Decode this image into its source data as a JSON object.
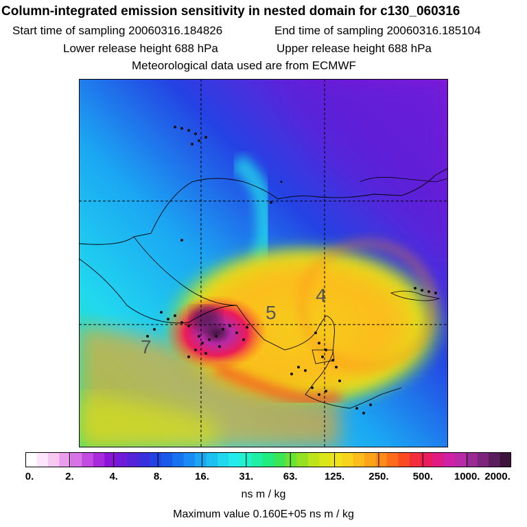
{
  "header": {
    "title": "Column-integrated emission sensitivity in nested domain for c130_060316",
    "start_sampling": "Start time of sampling 20060316.184826",
    "end_sampling": "End time of sampling 20060316.185104",
    "lower_release": "Lower release height  688 hPa",
    "upper_release": "Upper release height  688 hPa",
    "met_data": "Meteorological data used are from ECMWF"
  },
  "map": {
    "day_labels": [
      "4",
      "5",
      "7"
    ]
  },
  "colorbar": {
    "tick_labels": [
      "0.",
      "2.",
      "4.",
      "8.",
      "16.",
      "31.",
      "63.",
      "125.",
      "250.",
      "500.",
      "1000.",
      "2000."
    ],
    "colors": [
      "#ffffff",
      "#fde6fb",
      "#f7c8f2",
      "#eb9cec",
      "#d873e6",
      "#c24ce0",
      "#a82adc",
      "#8c16d8",
      "#6f1bd7",
      "#5523d8",
      "#3a2fdd",
      "#2442e3",
      "#1a58ea",
      "#1672ef",
      "#188cf2",
      "#1ba6f3",
      "#1ec0f2",
      "#21d8ef",
      "#24ecea",
      "#22f2cc",
      "#1ff0a6",
      "#22ec7e",
      "#3be556",
      "#68e234",
      "#94e121",
      "#bde31a",
      "#dbe619",
      "#efe31b",
      "#f8d31c",
      "#fcbd1c",
      "#fda41b",
      "#fd8a1a",
      "#fc6c1a",
      "#fa4a22",
      "#f42d3a",
      "#eb1c5a",
      "#de1c82",
      "#cf22a4",
      "#b82aa6",
      "#9c2a94",
      "#7b257c",
      "#5a1d5d",
      "#3c153c"
    ],
    "units": "ns m / kg"
  },
  "footer": {
    "max_value": "Maximum value  0.160E+05 ns m / kg"
  },
  "chart_data": {
    "type": "heatmap",
    "title": "Column-integrated emission sensitivity in nested domain for c130_060316",
    "color_scale": "log",
    "levels": [
      0,
      2,
      4,
      8,
      16,
      31,
      63,
      125,
      250,
      500,
      1000,
      2000
    ],
    "units": "ns m / kg",
    "maximum_value": 16000,
    "day_labels": [
      "4",
      "5",
      "7"
    ],
    "grid": true
  }
}
